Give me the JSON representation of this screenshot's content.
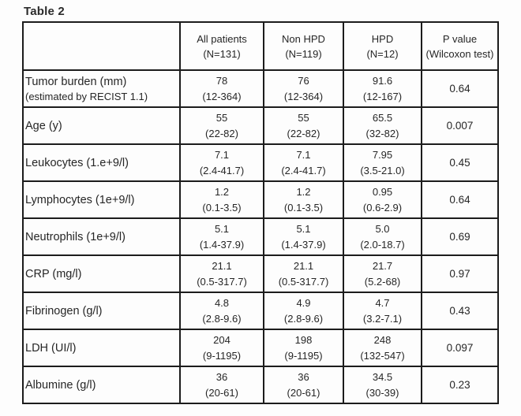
{
  "page": {
    "title": "Table 2"
  },
  "table": {
    "header": {
      "columns": [
        {
          "line1": "All  patients",
          "line2": "(N=131)"
        },
        {
          "line1": "Non HPD",
          "line2": "(N=119)"
        },
        {
          "line1": "HPD",
          "line2": "(N=12)"
        },
        {
          "line1": "P value",
          "line2": "(Wilcoxon test)"
        }
      ]
    },
    "rows": [
      {
        "label": "Tumor burden (mm)",
        "sublabel": "(estimated by RECIST 1.1)",
        "cells": [
          {
            "median": "78",
            "range": "(12-364)"
          },
          {
            "median": "76",
            "range": "(12-364)"
          },
          {
            "median": "91.6",
            "range": "(12-167)"
          }
        ],
        "p_value": "0.64"
      },
      {
        "label": "Age (y)",
        "cells": [
          {
            "median": "55",
            "range": "(22-82)"
          },
          {
            "median": "55",
            "range": "(22-82)"
          },
          {
            "median": "65.5",
            "range": "(32-82)"
          }
        ],
        "p_value": "0.007"
      },
      {
        "label": "Leukocytes (1.e+9/l)",
        "cells": [
          {
            "median": "7.1",
            "range": "(2.4-41.7)"
          },
          {
            "median": "7.1",
            "range": "(2.4-41.7)"
          },
          {
            "median": "7.95",
            "range": "(3.5-21.0)"
          }
        ],
        "p_value": "0.45"
      },
      {
        "label": "Lymphocytes (1e+9/l)",
        "cells": [
          {
            "median": "1.2",
            "range": "(0.1-3.5)"
          },
          {
            "median": "1.2",
            "range": "(0.1-3.5)"
          },
          {
            "median": "0.95",
            "range": "(0.6-2.9)"
          }
        ],
        "p_value": "0.64"
      },
      {
        "label": "Neutrophils (1e+9/l)",
        "cells": [
          {
            "median": "5.1",
            "range": "(1.4-37.9)"
          },
          {
            "median": "5.1",
            "range": "(1.4-37.9)"
          },
          {
            "median": "5.0",
            "range": "(2.0-18.7)"
          }
        ],
        "p_value": "0.69"
      },
      {
        "label": "CRP (mg/l)",
        "cells": [
          {
            "median": "21.1",
            "range": "(0.5-317.7)"
          },
          {
            "median": "21.1",
            "range": "(0.5-317.7)"
          },
          {
            "median": "21.7",
            "range": "(5.2-68)"
          }
        ],
        "p_value": "0.97"
      },
      {
        "label": "Fibrinogen (g/l)",
        "cells": [
          {
            "median": "4.8",
            "range": "(2.8-9.6)"
          },
          {
            "median": "4.9",
            "range": "(2.8-9.6)"
          },
          {
            "median": "4.7",
            "range": "(3.2-7.1)"
          }
        ],
        "p_value": "0.43"
      },
      {
        "label": "LDH (UI/l)",
        "cells": [
          {
            "median": "204",
            "range": "(9-1195)"
          },
          {
            "median": "198",
            "range": "(9-1195)"
          },
          {
            "median": "248",
            "range": "(132-547)"
          }
        ],
        "p_value": "0.097"
      },
      {
        "label": "Albumine (g/l)",
        "cells": [
          {
            "median": "36",
            "range": "(20-61)"
          },
          {
            "median": "36",
            "range": "(20-61)"
          },
          {
            "median": "34.5",
            "range": "(30-39)"
          }
        ],
        "p_value": "0.23"
      }
    ]
  }
}
